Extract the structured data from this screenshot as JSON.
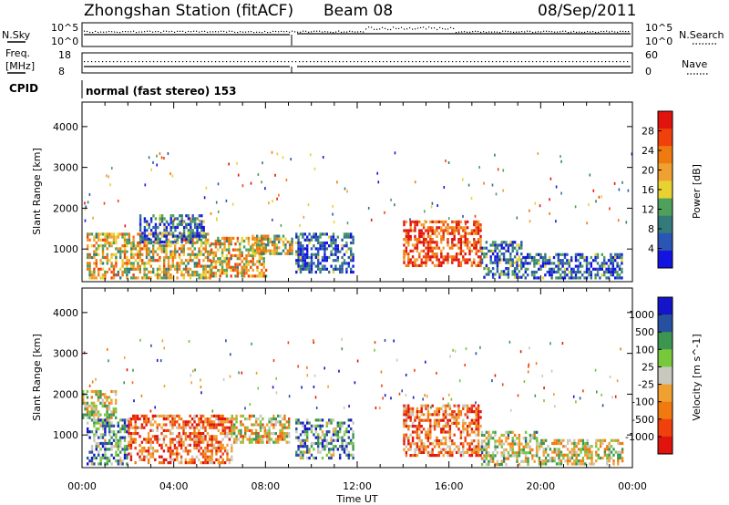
{
  "header": {
    "station": "Zhongshan Station (fitACF)",
    "beam": "Beam 08",
    "date": "08/Sep/2011"
  },
  "aux_panels": {
    "nsky_label": "N.Sky",
    "nsky_ticks": [
      "10^5",
      "10^0"
    ],
    "nsearch_label": "N.Search",
    "nsearch_ticks": [
      "10^5",
      "10^0"
    ],
    "freq_label_1": "Freq.",
    "freq_label_2": "[MHz]",
    "freq_ticks": [
      "18",
      "8"
    ],
    "nave_label": "Nave",
    "nave_ticks": [
      "60",
      "0"
    ],
    "cpid_label": "CPID",
    "cpid_text": "normal (fast stereo) 153"
  },
  "chart_data": [
    {
      "type": "heatmap",
      "name": "power",
      "ylabel": "Slant Range [km]",
      "ylim": [
        200,
        4600
      ],
      "yticks": [
        1000,
        2000,
        3000,
        4000
      ],
      "xlabel": "",
      "colorbar_label": "Power [dB]",
      "colorbar_ticks": [
        "4",
        "8",
        "12",
        "16",
        "20",
        "24",
        "28"
      ],
      "colorscale": [
        "#1414e0",
        "#2a55b4",
        "#357a7a",
        "#4fa05a",
        "#e8d232",
        "#f0a030",
        "#f07a10",
        "#f0400c",
        "#e0140c"
      ],
      "regions": [
        {
          "x": [
            0.2,
            5.6
          ],
          "y": [
            300,
            1400
          ],
          "level": 0.55
        },
        {
          "x": [
            2.5,
            5.3
          ],
          "y": [
            1200,
            1850
          ],
          "level": 0.2
        },
        {
          "x": [
            5.6,
            8.0
          ],
          "y": [
            300,
            1300
          ],
          "level": 0.6
        },
        {
          "x": [
            7.4,
            9.2
          ],
          "y": [
            900,
            1350
          ],
          "level": 0.5
        },
        {
          "x": [
            9.3,
            11.8
          ],
          "y": [
            450,
            1400
          ],
          "level": 0.2
        },
        {
          "x": [
            14.0,
            17.4
          ],
          "y": [
            600,
            1700
          ],
          "level": 0.85
        },
        {
          "x": [
            17.4,
            19.2
          ],
          "y": [
            300,
            1200
          ],
          "level": 0.25
        },
        {
          "x": [
            19.2,
            23.5
          ],
          "y": [
            300,
            900
          ],
          "level": 0.2
        }
      ]
    },
    {
      "type": "heatmap",
      "name": "velocity",
      "ylabel": "Slant Range [km]",
      "ylim": [
        200,
        4600
      ],
      "yticks": [
        1000,
        2000,
        3000,
        4000
      ],
      "xlabel": "Time UT",
      "x_ticks": [
        "00:00",
        "04:00",
        "08:00",
        "12:00",
        "16:00",
        "20:00",
        "00:00"
      ],
      "colorbar_label": "Velocity [m s^-1]",
      "colorbar_ticks": [
        "1000",
        "500",
        "100",
        "25",
        "-25",
        "-100",
        "-500",
        "-1000"
      ],
      "colorscale": [
        "#e0140c",
        "#f0400c",
        "#f07a10",
        "#f0a030",
        "#c8c8be",
        "#78c83c",
        "#3c9650",
        "#2850a0",
        "#1414c8"
      ],
      "regions": [
        {
          "x": [
            0.0,
            1.5
          ],
          "y": [
            1400,
            2100
          ],
          "level": 0.5
        },
        {
          "x": [
            0.2,
            2.0
          ],
          "y": [
            300,
            1400
          ],
          "level": 0.7
        },
        {
          "x": [
            2.0,
            6.5
          ],
          "y": [
            300,
            1500
          ],
          "level": 0.25
        },
        {
          "x": [
            6.5,
            9.0
          ],
          "y": [
            800,
            1500
          ],
          "level": 0.45
        },
        {
          "x": [
            9.3,
            11.8
          ],
          "y": [
            450,
            1400
          ],
          "level": 0.7
        },
        {
          "x": [
            14.0,
            17.4
          ],
          "y": [
            500,
            1750
          ],
          "level": 0.25
        },
        {
          "x": [
            17.4,
            19.8
          ],
          "y": [
            300,
            1100
          ],
          "level": 0.55
        },
        {
          "x": [
            19.8,
            23.6
          ],
          "y": [
            300,
            900
          ],
          "level": 0.5
        }
      ]
    }
  ]
}
